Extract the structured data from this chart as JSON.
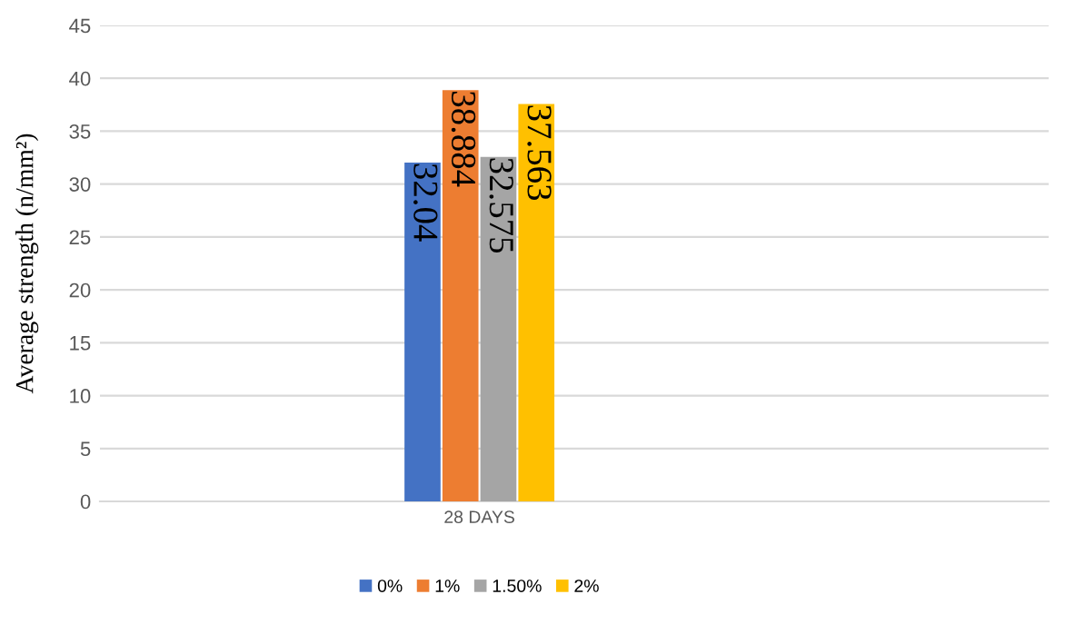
{
  "chart_data": {
    "type": "bar",
    "ylabel": "Average strength (n/mm²)",
    "categories": [
      "28 DAYS"
    ],
    "series": [
      {
        "name": "0%",
        "color": "#4472c4",
        "values": [
          32.04
        ]
      },
      {
        "name": "1%",
        "color": "#ed7d31",
        "values": [
          38.884
        ]
      },
      {
        "name": "1.50%",
        "color": "#a5a5a5",
        "values": [
          32.575
        ]
      },
      {
        "name": "2%",
        "color": "#ffc000",
        "values": [
          37.563
        ]
      }
    ],
    "ylim": [
      0,
      45
    ],
    "yticks": [
      0,
      5,
      10,
      15,
      20,
      25,
      30,
      35,
      40,
      45
    ],
    "grid": "y",
    "legend": "bottom",
    "data_labels": true
  }
}
